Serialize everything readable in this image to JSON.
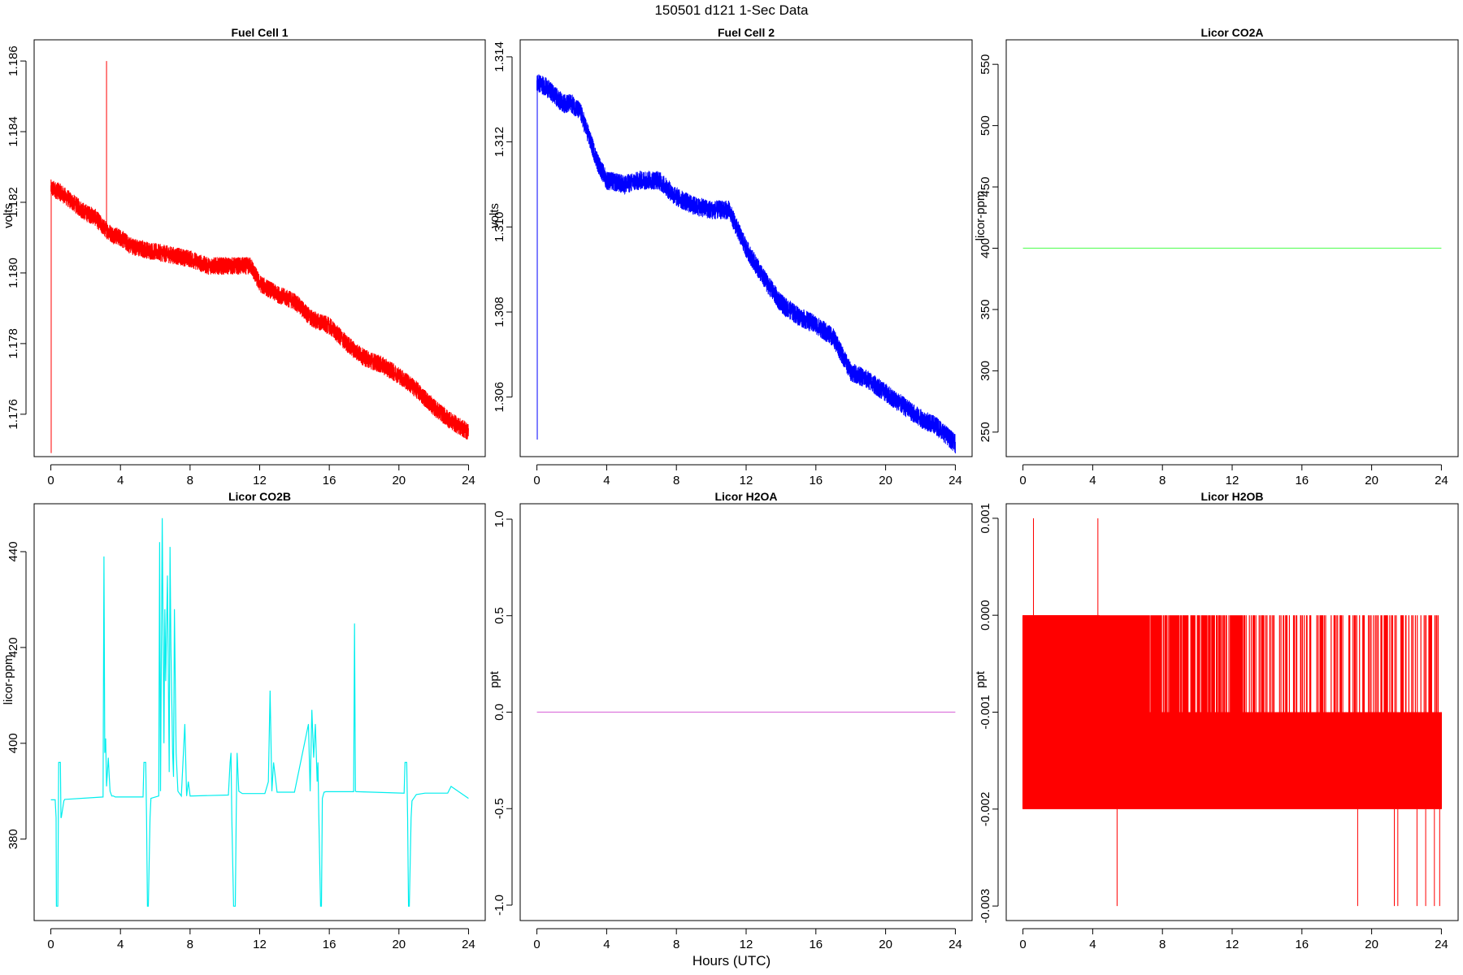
{
  "figure": {
    "title": "150501   d121   1-Sec Data",
    "xlabel": "Hours (UTC)"
  },
  "chart_data": [
    {
      "type": "line",
      "title": "Fuel Cell 1",
      "ylabel": "volts",
      "color": "#ff0000",
      "xlim": [
        0,
        24
      ],
      "ylim": [
        1.1748,
        1.1866
      ],
      "xticks": [
        0,
        4,
        8,
        12,
        16,
        20,
        24
      ],
      "yticks": [
        1.176,
        1.178,
        1.18,
        1.182,
        1.184,
        1.186
      ],
      "ytick_labels": [
        "1.176",
        "1.178",
        "1.180",
        "1.182",
        "1.184",
        "1.186"
      ],
      "series": [
        {
          "x": [
            0,
            0.5,
            1,
            1.5,
            2,
            2.5,
            3,
            3.5,
            4,
            4.5,
            5,
            6,
            7,
            8,
            9,
            10,
            11,
            11.5,
            12,
            13,
            14,
            15,
            15.5,
            16,
            17,
            18,
            19,
            20,
            21,
            22,
            23,
            24
          ],
          "y": [
            1.1824,
            1.1823,
            1.1821,
            1.1819,
            1.1817,
            1.1816,
            1.1813,
            1.1811,
            1.181,
            1.1808,
            1.1807,
            1.1806,
            1.1805,
            1.1804,
            1.1802,
            1.1802,
            1.1802,
            1.1802,
            1.1797,
            1.1794,
            1.1792,
            1.1787,
            1.1786,
            1.1785,
            1.178,
            1.1776,
            1.1774,
            1.1771,
            1.1767,
            1.1762,
            1.1758,
            1.1755
          ],
          "noise": 0.0005,
          "spikes": [
            {
              "x": 3.2,
              "y": 1.186
            },
            {
              "x": 0.02,
              "y": 1.1749
            }
          ]
        }
      ]
    },
    {
      "type": "line",
      "title": "Fuel Cell 2",
      "ylabel": "volts",
      "color": "#0000ff",
      "xlim": [
        0,
        24
      ],
      "ylim": [
        1.3046,
        1.3144
      ],
      "xticks": [
        0,
        4,
        8,
        12,
        16,
        20,
        24
      ],
      "yticks": [
        1.306,
        1.308,
        1.31,
        1.312,
        1.314
      ],
      "ytick_labels": [
        "1.306",
        "1.308",
        "1.310",
        "1.312",
        "1.314"
      ],
      "series": [
        {
          "x": [
            0,
            0.5,
            1,
            1.5,
            2,
            2.5,
            3,
            3.5,
            4,
            5,
            6,
            7,
            8,
            9,
            10,
            11,
            12,
            13,
            14,
            15,
            16,
            17,
            18,
            19,
            20,
            21,
            22,
            23,
            24
          ],
          "y": [
            1.3134,
            1.3133,
            1.3131,
            1.3129,
            1.3129,
            1.3127,
            1.3121,
            1.3115,
            1.3111,
            1.311,
            1.3111,
            1.3111,
            1.3107,
            1.3105,
            1.3104,
            1.3104,
            1.3095,
            1.3088,
            1.3082,
            1.3079,
            1.3077,
            1.3074,
            1.3066,
            1.3064,
            1.3061,
            1.3058,
            1.3055,
            1.3053,
            1.3049
          ],
          "noise": 0.00045,
          "spikes": [
            {
              "x": 0.02,
              "y": 1.305
            }
          ]
        }
      ]
    },
    {
      "type": "line",
      "title": "Licor CO2A",
      "ylabel": "licor-ppm",
      "color": "#66ff66",
      "xlim": [
        0,
        24
      ],
      "ylim": [
        230,
        570
      ],
      "xticks": [
        0,
        4,
        8,
        12,
        16,
        20,
        24
      ],
      "yticks": [
        250,
        300,
        350,
        400,
        450,
        500,
        550
      ],
      "ytick_labels": [
        "250",
        "300",
        "350",
        "400",
        "450",
        "500",
        "550"
      ],
      "series": [
        {
          "x": [
            0,
            24
          ],
          "y": [
            400,
            400
          ],
          "noise": 0,
          "spikes": []
        }
      ]
    },
    {
      "type": "line",
      "title": "Licor CO2B",
      "ylabel": "licor-ppm",
      "color": "#00eeee",
      "xlim": [
        0,
        24
      ],
      "ylim": [
        363,
        450
      ],
      "xticks": [
        0,
        4,
        8,
        12,
        16,
        20,
        24
      ],
      "yticks": [
        380,
        400,
        420,
        440
      ],
      "ytick_labels": [
        "380",
        "400",
        "420",
        "440"
      ],
      "series": [
        {
          "x": [
            0,
            0.25,
            0.3,
            0.32,
            0.4,
            0.45,
            0.5,
            0.55,
            0.58,
            0.6,
            0.75,
            0.8,
            0.85,
            3,
            3.05,
            3.1,
            3.15,
            3.2,
            3.3,
            3.4,
            3.5,
            3.6,
            3.7,
            5.3,
            5.35,
            5.45,
            5.5,
            5.55,
            5.6,
            5.7,
            5.75,
            6.2,
            6.25,
            6.3,
            6.4,
            6.5,
            6.55,
            6.6,
            6.7,
            6.8,
            6.85,
            6.9,
            7.0,
            7.05,
            7.1,
            7.2,
            7.3,
            7.5,
            7.7,
            7.8,
            7.9,
            8.0,
            10.2,
            10.3,
            10.35,
            10.4,
            10.5,
            10.6,
            10.65,
            10.7,
            10.8,
            11,
            12.3,
            12.5,
            12.6,
            12.7,
            12.8,
            13,
            14.0,
            14.8,
            14.9,
            15.0,
            15.1,
            15.2,
            15.3,
            15.35,
            15.4,
            15.5,
            15.55,
            15.6,
            15.7,
            15.8,
            17.4,
            17.45,
            17.5,
            17.55,
            17.6,
            20.3,
            20.35,
            20.45,
            20.5,
            20.55,
            20.6,
            20.7,
            20.75,
            21,
            21.5,
            22.8,
            23,
            24
          ],
          "y": [
            388.2,
            388.2,
            384.5,
            366,
            366,
            396,
            396,
            396,
            384.5,
            384.5,
            388,
            388.3,
            388.3,
            388.8,
            439,
            398,
            401,
            391,
            397,
            390,
            389,
            389,
            388.8,
            388.8,
            396,
            396,
            384.5,
            366,
            366,
            384.5,
            388.5,
            389,
            442,
            390,
            447,
            400,
            428,
            413,
            435,
            394,
            441,
            420,
            398,
            393,
            428,
            398,
            390,
            389,
            404,
            389,
            392,
            389,
            389.2,
            396,
            398,
            384.5,
            366,
            366,
            384.5,
            398,
            390,
            389.5,
            389.5,
            392,
            411,
            390,
            396,
            389.8,
            389.8,
            404,
            390,
            407,
            397,
            404,
            392,
            396,
            384.5,
            366,
            366,
            388.5,
            389.8,
            389.9,
            389.9,
            425,
            390,
            389.9,
            389.9,
            389.6,
            396,
            396,
            384.5,
            366,
            366,
            384.5,
            388,
            389.3,
            389.6,
            389.6,
            391,
            388.5
          ]
        }
      ]
    },
    {
      "type": "line",
      "title": "Licor H2OA",
      "ylabel": "ppt",
      "color": "#dd77dd",
      "xlim": [
        0,
        24
      ],
      "ylim": [
        -1.08,
        1.08
      ],
      "xticks": [
        0,
        4,
        8,
        12,
        16,
        20,
        24
      ],
      "yticks": [
        -1.0,
        -0.5,
        0.0,
        0.5,
        1.0
      ],
      "ytick_labels": [
        "-1.0",
        "-0.5",
        "0.0",
        "0.5",
        "1.0"
      ],
      "series": [
        {
          "x": [
            0,
            24
          ],
          "y": [
            0,
            0
          ]
        }
      ]
    },
    {
      "type": "line",
      "title": "Licor H2OB",
      "ylabel": "ppt",
      "color": "#ff0000",
      "xlim": [
        0,
        24
      ],
      "ylim": [
        -0.00315,
        0.00115
      ],
      "xticks": [
        0,
        4,
        8,
        12,
        16,
        20,
        24
      ],
      "yticks": [
        -0.003,
        -0.002,
        -0.001,
        0.0,
        0.001
      ],
      "ytick_labels": [
        "-0.003",
        "-0.002",
        "-0.001",
        "0.000",
        "0.001"
      ],
      "series": [
        {
          "values": [
            0,
            -0.001,
            -0.002
          ],
          "x_range": [
            0,
            24
          ],
          "fill_bands": [
            [
              0,
              -0.001,
              0,
              24
            ],
            [
              -0.001,
              -0.002,
              0,
              24
            ]
          ],
          "spikes": [
            {
              "x": 0.6,
              "y": 0.001
            },
            {
              "x": 4.3,
              "y": 0.001
            },
            {
              "x": 5.4,
              "y": -0.003
            },
            {
              "x": 19.2,
              "y": -0.003
            },
            {
              "x": 21.3,
              "y": -0.003
            },
            {
              "x": 21.5,
              "y": -0.003
            },
            {
              "x": 22.6,
              "y": -0.003
            },
            {
              "x": 23.1,
              "y": -0.003
            },
            {
              "x": 23.6,
              "y": -0.003
            },
            {
              "x": 23.9,
              "y": -0.003
            }
          ]
        }
      ]
    }
  ]
}
